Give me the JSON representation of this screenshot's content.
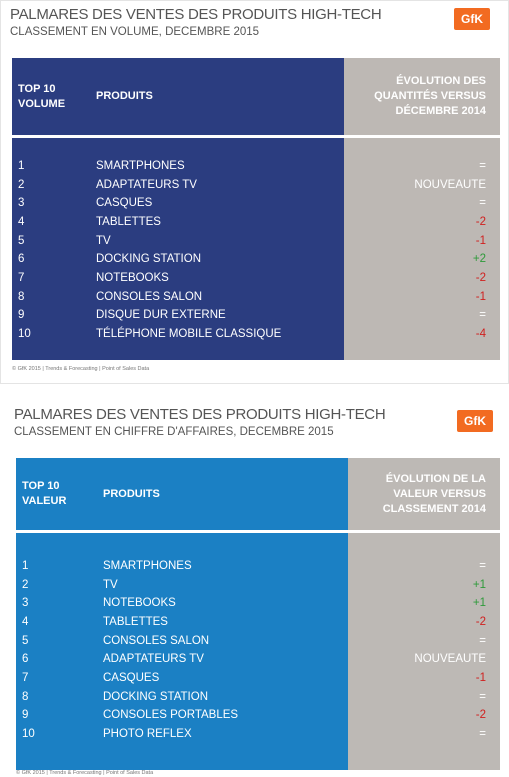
{
  "panels": [
    {
      "title": "PALMARES DES VENTES DES PRODUITS HIGH-TECH",
      "subtitle": "CLASSEMENT EN VOLUME, DECEMBRE 2015",
      "logo": "GfK",
      "columns": [
        [
          "TOP 10",
          "VOLUME"
        ],
        [
          "PRODUITS"
        ],
        [
          "ÉVOLUTION DES",
          "QUANTITÉS VERSUS",
          "DÉCEMBRE 2014"
        ]
      ],
      "rows": [
        [
          1,
          "SMARTPHONES",
          "="
        ],
        [
          2,
          "ADAPTATEURS TV",
          "NOUVEAUTE"
        ],
        [
          3,
          "CASQUES",
          "="
        ],
        [
          4,
          "TABLETTES",
          "-2"
        ],
        [
          5,
          "TV",
          "-1"
        ],
        [
          6,
          "DOCKING STATION",
          "+2"
        ],
        [
          7,
          "NOTEBOOKS",
          "-2"
        ],
        [
          8,
          "CONSOLES SALON",
          "-1"
        ],
        [
          9,
          "DISQUE DUR EXTERNE",
          "="
        ],
        [
          10,
          "TÉLÉPHONE MOBILE CLASSIQUE",
          "-4"
        ]
      ],
      "footer": "© GfK 2015 | Trends & Forecasting | Point of Sales Data"
    },
    {
      "title": "PALMARES DES VENTES DES PRODUITS HIGH-TECH",
      "subtitle": "CLASSEMENT EN CHIFFRE D'AFFAIRES, DECEMBRE 2015",
      "logo": "GfK",
      "columns": [
        [
          "TOP 10",
          "VALEUR"
        ],
        [
          "PRODUITS"
        ],
        [
          "ÉVOLUTION DE LA",
          "VALEUR VERSUS",
          "CLASSEMENT 2014"
        ]
      ],
      "rows": [
        [
          1,
          "SMARTPHONES",
          "="
        ],
        [
          2,
          "TV",
          "+1"
        ],
        [
          3,
          "NOTEBOOKS",
          "+1"
        ],
        [
          4,
          "TABLETTES",
          "-2"
        ],
        [
          5,
          "CONSOLES SALON",
          "="
        ],
        [
          6,
          "ADAPTATEURS TV",
          "NOUVEAUTE"
        ],
        [
          7,
          "CASQUES",
          "-1"
        ],
        [
          8,
          "DOCKING STATION",
          "="
        ],
        [
          9,
          "CONSOLES PORTABLES",
          "-2"
        ],
        [
          10,
          "PHOTO REFLEX",
          "="
        ]
      ],
      "footer": "© GfK 2015 | Trends & Forecasting | Point of Sales Data"
    }
  ]
}
